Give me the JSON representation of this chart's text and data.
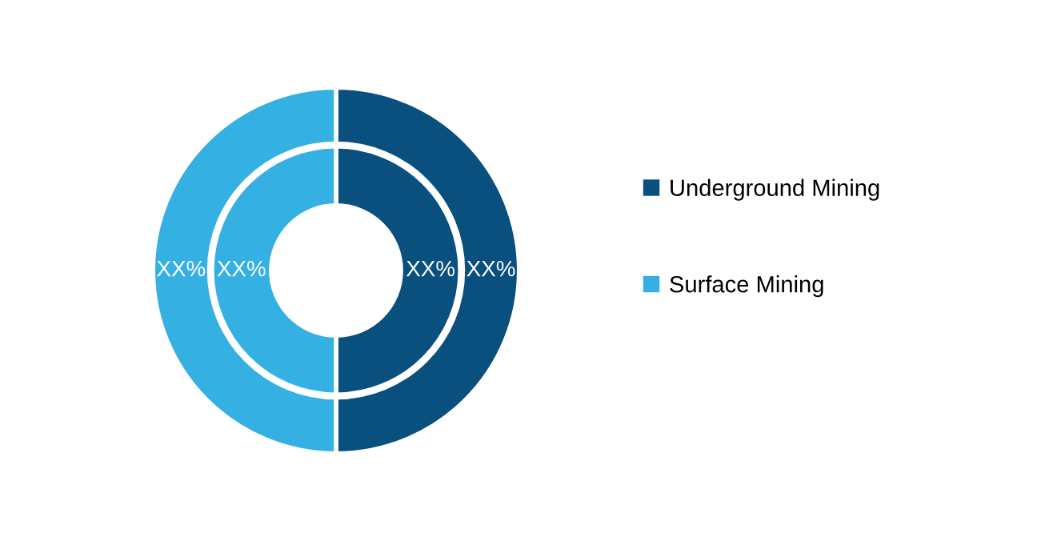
{
  "chart_data": {
    "type": "donut",
    "categories": [
      "Underground Mining",
      "Surface Mining"
    ],
    "colors": [
      "#0a507e",
      "#35b0e2"
    ],
    "series": [
      {
        "values": [
          50,
          50
        ],
        "value_labels": [
          "XX%",
          "XX%"
        ]
      },
      {
        "values": [
          50,
          50
        ],
        "value_labels": [
          "XX%",
          "XX%"
        ]
      }
    ],
    "legend": "right"
  }
}
